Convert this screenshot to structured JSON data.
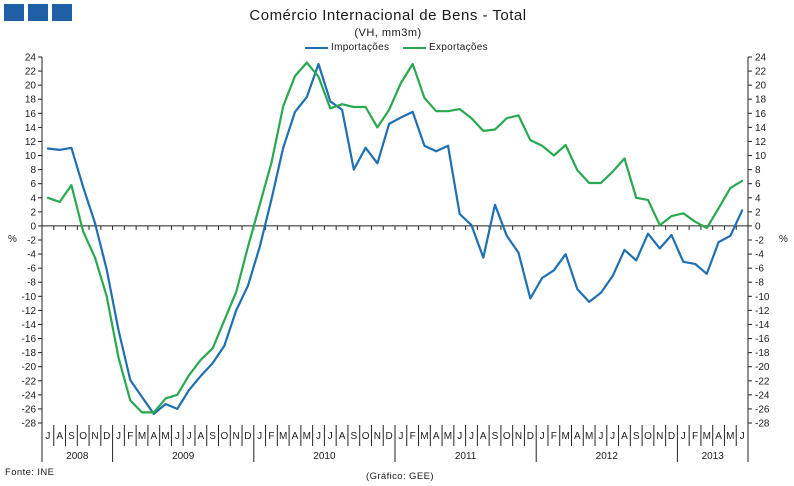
{
  "logo": {
    "color": "#1f5fa8"
  },
  "chart_data": {
    "type": "line",
    "title": "Comércio Internacional de Bens - Total",
    "subtitle": "(VH, mm3m)",
    "ylabel": "%",
    "xlabel": "",
    "ylim": [
      -28,
      24
    ],
    "yticks": [
      24,
      22,
      20,
      18,
      16,
      14,
      12,
      10,
      8,
      6,
      4,
      2,
      0,
      -2,
      -4,
      -6,
      -8,
      -10,
      -12,
      -14,
      -16,
      -18,
      -20,
      -22,
      -24,
      -26,
      -28
    ],
    "y_axis_both_sides": true,
    "grid": false,
    "legend_position": "top",
    "x_axis": {
      "groups": [
        {
          "year": "2008",
          "months": [
            "J",
            "A",
            "S",
            "O",
            "N",
            "D"
          ]
        },
        {
          "year": "2009",
          "months": [
            "J",
            "F",
            "M",
            "A",
            "M",
            "J",
            "J",
            "A",
            "S",
            "O",
            "N",
            "D"
          ]
        },
        {
          "year": "2010",
          "months": [
            "J",
            "F",
            "M",
            "A",
            "M",
            "J",
            "J",
            "A",
            "S",
            "O",
            "N",
            "D"
          ]
        },
        {
          "year": "2011",
          "months": [
            "J",
            "F",
            "M",
            "A",
            "M",
            "J",
            "J",
            "A",
            "S",
            "O",
            "N",
            "D"
          ]
        },
        {
          "year": "2012",
          "months": [
            "J",
            "F",
            "M",
            "A",
            "M",
            "J",
            "J",
            "A",
            "S",
            "O",
            "N",
            "D"
          ]
        },
        {
          "year": "2013",
          "months": [
            "J",
            "F",
            "M",
            "A",
            "M",
            "J"
          ]
        }
      ]
    },
    "series": [
      {
        "name": "Importações",
        "color": "#1f6fb2",
        "values": [
          11.0,
          10.8,
          11.1,
          5.5,
          0.4,
          -6.2,
          -14.8,
          -21.9,
          -24.3,
          -26.7,
          -25.3,
          -26.0,
          -23.3,
          -21.3,
          -19.5,
          -17.0,
          -12.0,
          -8.5,
          -3.0,
          3.8,
          11.1,
          16.2,
          18.3,
          23.0,
          17.7,
          16.5,
          8.0,
          11.1,
          8.9,
          14.5,
          15.4,
          16.2,
          11.4,
          10.6,
          11.4,
          1.7,
          0.1,
          -4.5,
          3.0,
          -1.4,
          -3.8,
          -10.3,
          -7.4,
          -6.3,
          -4.0,
          -9.0,
          -10.8,
          -9.5,
          -7.1,
          -3.4,
          -4.9,
          -1.1,
          -3.2,
          -1.3,
          -5.1,
          -5.4,
          -6.8,
          -2.3,
          -1.4,
          2.2
        ]
      },
      {
        "name": "Exportações",
        "color": "#2aa84f",
        "values": [
          4.0,
          3.4,
          5.8,
          -0.8,
          -4.5,
          -10.0,
          -18.7,
          -24.8,
          -26.5,
          -26.5,
          -24.5,
          -24.0,
          -21.2,
          -19.0,
          -17.4,
          -13.4,
          -9.4,
          -3.0,
          3.0,
          9.0,
          17.0,
          21.3,
          23.2,
          21.2,
          16.7,
          17.3,
          16.9,
          16.9,
          14.0,
          16.5,
          20.3,
          23.0,
          18.2,
          16.3,
          16.3,
          16.6,
          15.3,
          13.5,
          13.7,
          15.3,
          15.7,
          12.2,
          11.4,
          10.0,
          11.5,
          7.9,
          6.1,
          6.1,
          7.7,
          9.6,
          4.0,
          3.7,
          0.1,
          1.4,
          1.8,
          0.6,
          -0.3,
          2.5,
          5.4,
          6.4
        ]
      }
    ]
  },
  "footer": {
    "source": "Fonte: INE",
    "credit": "(Gráfico: GEE)"
  }
}
